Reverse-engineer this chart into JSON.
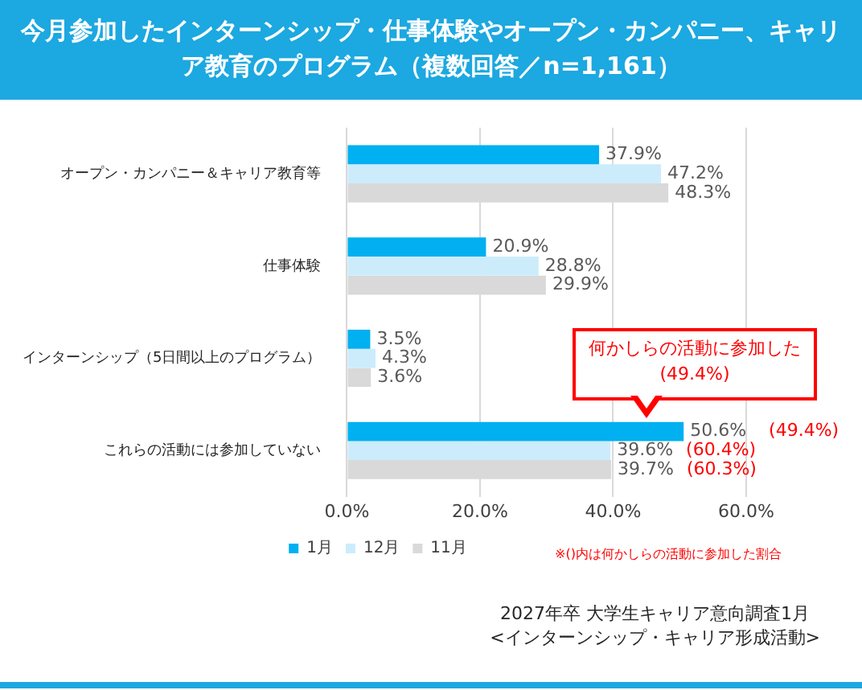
{
  "chart_data": {
    "type": "bar",
    "orientation": "horizontal",
    "title": "今月参加したインターンシップ・仕事体験やオープン・カンパニー、キャリア教育のプログラム（複数回答／n=1,161）",
    "categories": [
      "オープン・カンパニー＆キャリア教育等",
      "仕事体験",
      "インターンシップ（5日間以上のプログラム）",
      "これらの活動には参加していない"
    ],
    "series": [
      {
        "name": "1月",
        "color": "#00b0f0",
        "values": [
          37.9,
          20.9,
          3.5,
          50.6
        ],
        "value_labels": [
          "37.9%",
          "20.9%",
          "3.5%",
          "50.6%"
        ]
      },
      {
        "name": "12月",
        "color": "#ccecfc",
        "values": [
          47.2,
          28.8,
          4.3,
          39.6
        ],
        "value_labels": [
          "47.2%",
          "28.8%",
          "4.3%",
          "39.6%"
        ]
      },
      {
        "name": "11月",
        "color": "#d9d9d9",
        "values": [
          48.3,
          29.9,
          3.6,
          39.7
        ],
        "value_labels": [
          "48.3%",
          "29.9%",
          "3.6%",
          "39.7%"
        ]
      }
    ],
    "xlim": [
      0,
      60
    ],
    "xticks": [
      {
        "value": 0,
        "label": "0.0%"
      },
      {
        "value": 20,
        "label": "20.0%"
      },
      {
        "value": 40,
        "label": "40.0%"
      },
      {
        "value": 60,
        "label": "60.0%"
      }
    ],
    "grid": "x",
    "legend": "bottom",
    "annotations": [
      "(49.4%)",
      "(60.4%)",
      "(60.3%)",
      "何かしらの活動に参加した\n(49.4%)",
      "※()内は何かしらの活動に参加した割合",
      "2027年卒  大学生キャリア意向調査1月",
      "<インターンシップ・キャリア形成活動>"
    ]
  }
}
